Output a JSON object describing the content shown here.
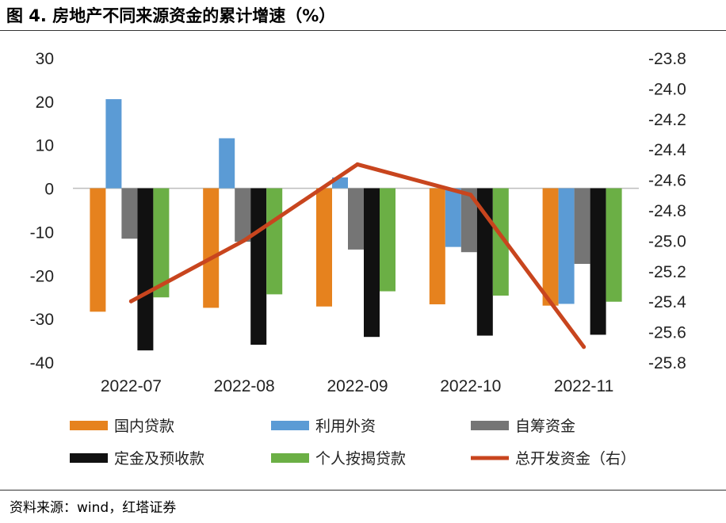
{
  "title": "图 4. 房地产不同来源资金的累计增速（%）",
  "source": "资料来源：wind，红塔证券",
  "chart_data": {
    "type": "bar",
    "categories": [
      "2022-07",
      "2022-08",
      "2022-09",
      "2022-10",
      "2022-11"
    ],
    "series": [
      {
        "name": "国内贷款",
        "color": "#E6821E",
        "axis": "left",
        "values": [
          -28.4,
          -27.5,
          -27.2,
          -26.7,
          -27.0
        ]
      },
      {
        "name": "利用外资",
        "color": "#5B9BD5",
        "axis": "left",
        "values": [
          20.5,
          11.5,
          2.5,
          -13.5,
          -26.6
        ]
      },
      {
        "name": "自筹资金",
        "color": "#757575",
        "axis": "left",
        "values": [
          -11.6,
          -12.3,
          -14.1,
          -14.7,
          -17.4
        ]
      },
      {
        "name": "定金及预收款",
        "color": "#111111",
        "axis": "left",
        "values": [
          -37.3,
          -36.0,
          -34.2,
          -33.9,
          -33.7
        ]
      },
      {
        "name": "个人按揭贷款",
        "color": "#6BAF45",
        "axis": "left",
        "values": [
          -25.1,
          -24.4,
          -23.7,
          -24.7,
          -26.1
        ]
      }
    ],
    "line": {
      "name": "总开发资金（右）",
      "color": "#C8451E",
      "axis": "right",
      "values": [
        -25.4,
        -25.0,
        -24.5,
        -24.7,
        -25.7
      ]
    },
    "yleft": {
      "lim": [
        -40,
        30
      ],
      "ticks": [
        "30",
        "20",
        "10",
        "0",
        "-10",
        "-20",
        "-30",
        "-40"
      ]
    },
    "yright": {
      "lim": [
        -25.8,
        -23.8
      ],
      "ticks": [
        "-23.8",
        "-24.0",
        "-24.2",
        "-24.4",
        "-24.6",
        "-24.8",
        "-25.0",
        "-25.2",
        "-25.4",
        "-25.6",
        "-25.8"
      ]
    },
    "grid": false,
    "legend_position": "bottom"
  }
}
